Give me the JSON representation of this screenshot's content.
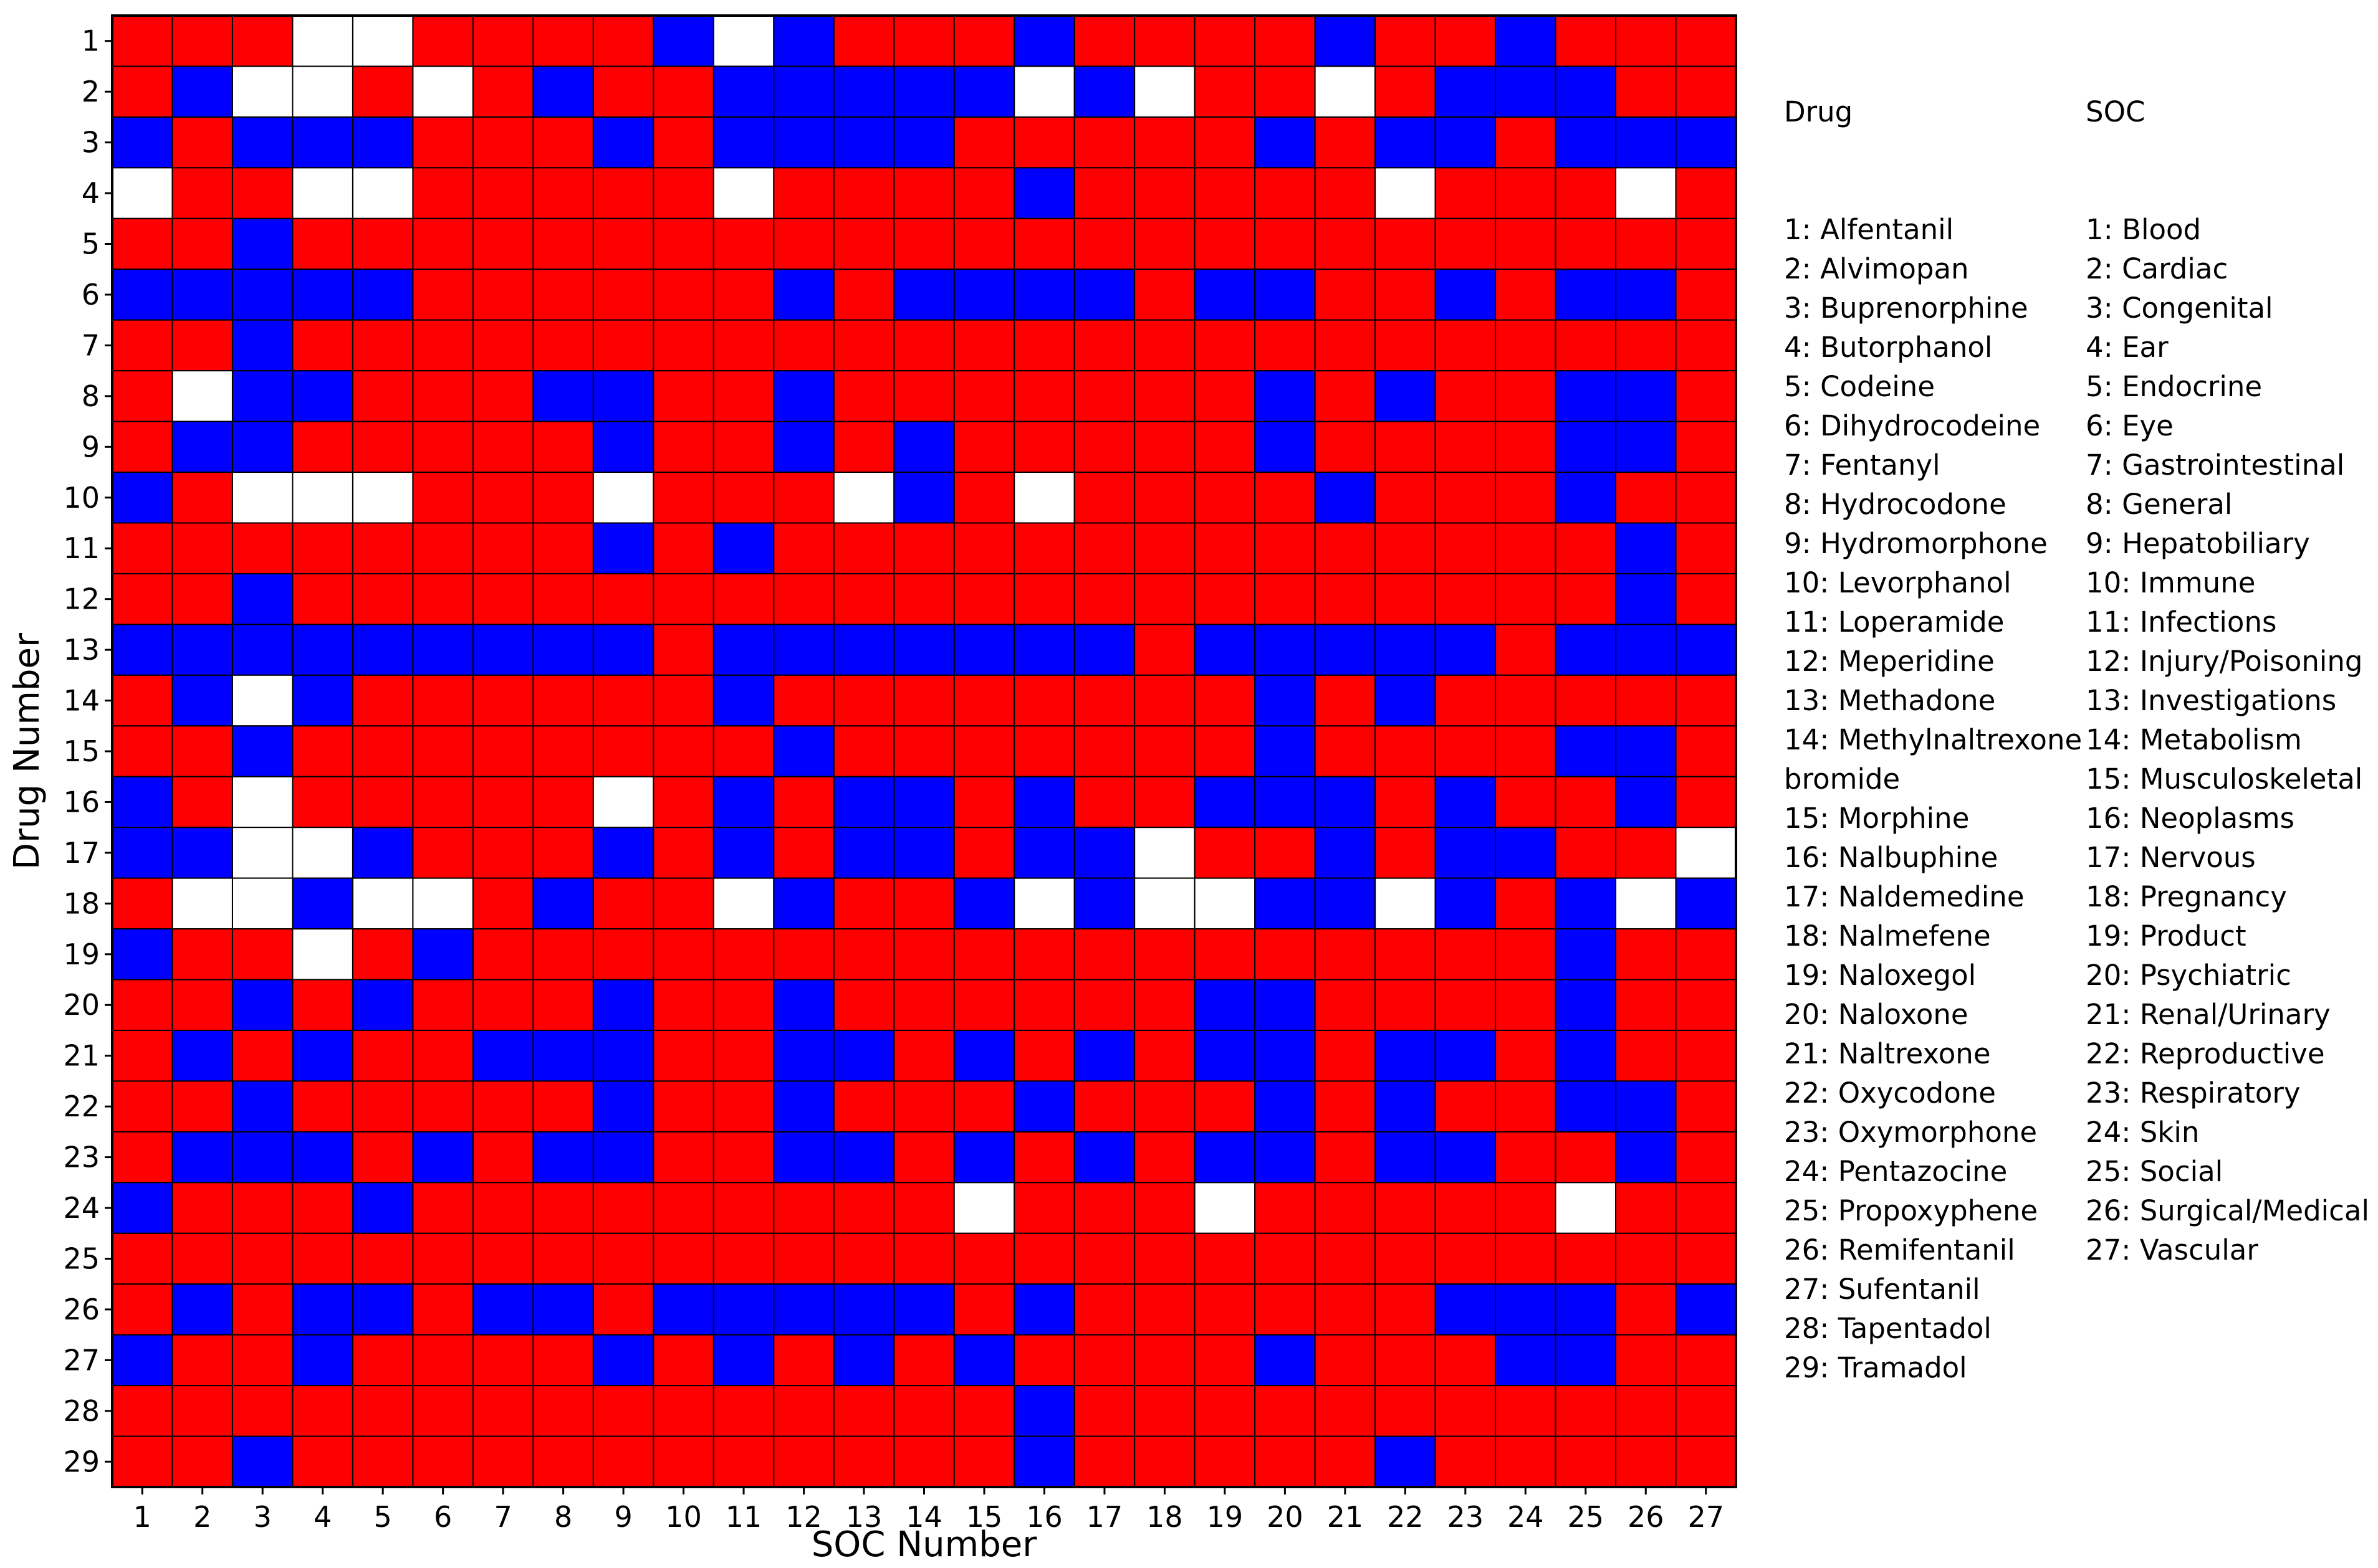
{
  "chart_data": {
    "type": "heatmap",
    "xlabel": "SOC Number",
    "ylabel": "Drug Number",
    "x_ticks": [
      "1",
      "2",
      "3",
      "4",
      "5",
      "6",
      "7",
      "8",
      "9",
      "10",
      "11",
      "12",
      "13",
      "14",
      "15",
      "16",
      "17",
      "18",
      "19",
      "20",
      "21",
      "22",
      "23",
      "24",
      "25",
      "26",
      "27"
    ],
    "y_ticks": [
      "1",
      "2",
      "3",
      "4",
      "5",
      "6",
      "7",
      "8",
      "9",
      "10",
      "11",
      "12",
      "13",
      "14",
      "15",
      "16",
      "17",
      "18",
      "19",
      "20",
      "21",
      "22",
      "23",
      "24",
      "25",
      "26",
      "27",
      "28",
      "29"
    ],
    "color_key": {
      "R": "#ff0000",
      "B": "#0000ff",
      "W": "#ffffff"
    },
    "grid": true,
    "rows": [
      "RRRWWRRRRBWBRRRBRRRRBRRBRRR",
      "RBWWRWRBRRBBBBBWBWRRWRBBBRR",
      "BRBBBRRRBRBBBBRRRRRBRBBRBBB",
      "WRRWWRRRRRWRRRRBRRRRRWRRRWR",
      "RRBRRRRRRRRRRRRRRRRRRRRRRRR",
      "BBBBBRRRRRRBRBBBBRBBRRBRBBR",
      "RRBRRRRRRRRRRRRRRRRRRRRRRRR",
      "RWBBRRRBBRRBRRRRRRRBRBRRBBR",
      "RBBRRRRRBRRBRBRRRRRBRRRRBBR",
      "BRWWWRRRWRRRWBRWRRRRBRRRBRR",
      "RRRRRRRRBRBRRRRRRRRRRRRRRBR",
      "RRBRRRRRRRRRRRRRRRRRRRRRRBR",
      "BBBBBBBBBRBBBBBBBRBBBBBRBBB",
      "RBWBRRRRRRBRRRRRRRRBRBRRRRR",
      "RRBRRRRRRRRBRRRRRRRBRRRRBBR",
      "BRWRRRRRWRBRBBRBRRBBBRBRRBR",
      "BBWWBRRRBRBRBBRBBWRRBRBBRRW",
      "RWWBWWRBRRWBRRBWBWWBBWBRBWB",
      "BRRWRBRRRRRRRRRRRRRRRRRRBRR",
      "RRBRBRRRBRRBRRRRRRBBRRRRBRR",
      "RBRBRRBBBRRBBRBRBRBBRBBRBRR",
      "RRBRRRRRBRRBRRRBRRRBRBRRBBR",
      "RBBBRBRBBRRBBRBRBRBBRBBRRBR",
      "BRRRBRRRRRRRRRWRRRWRRRRRWRR",
      "RRRRRRRRRRRRRRRRRRRRRRRRRRR",
      "RBRBBRBBRBBBBBRBRRRRRRBBBRB",
      "BRRBRRRRBRBRBRBRRRRBRRRBBRR",
      "RRRRRRRRRRRRRRRBRRRRRRRRRRR",
      "RRBRRRRRRRRRRRRBRRRRRBRRRRR"
    ]
  },
  "legend": {
    "drug_title": "Drug",
    "soc_title": "SOC",
    "drugs": [
      "1: Alfentanil",
      "2: Alvimopan",
      "3: Buprenorphine",
      "4: Butorphanol",
      "5: Codeine",
      "6: Dihydrocodeine",
      "7: Fentanyl",
      "8: Hydrocodone",
      "9: Hydromorphone",
      "10: Levorphanol",
      "11: Loperamide",
      "12: Meperidine",
      "13: Methadone",
      "14: Methylnaltrexone",
      "bromide",
      "15: Morphine",
      "16: Nalbuphine",
      "17: Naldemedine",
      "18: Nalmefene",
      "19: Naloxegol",
      "20: Naloxone",
      "21: Naltrexone",
      "22: Oxycodone",
      "23: Oxymorphone",
      "24: Pentazocine",
      "25: Propoxyphene",
      "26: Remifentanil",
      "27: Sufentanil",
      "28: Tapentadol",
      "29: Tramadol"
    ],
    "socs": [
      "1: Blood",
      "2: Cardiac",
      "3: Congenital",
      "4: Ear",
      "5: Endocrine",
      "6: Eye",
      "7: Gastrointestinal",
      "8: General",
      "9: Hepatobiliary",
      "10: Immune",
      "11: Infections",
      "12: Injury/Poisoning",
      "13: Investigations",
      "14: Metabolism",
      "15: Musculoskeletal",
      "16: Neoplasms",
      "17: Nervous",
      "18: Pregnancy",
      "19: Product",
      "20: Psychiatric",
      "21: Renal/Urinary",
      "22: Reproductive",
      "23: Respiratory",
      "24: Skin",
      "25: Social",
      "26: Surgical/Medical",
      "27: Vascular"
    ]
  }
}
